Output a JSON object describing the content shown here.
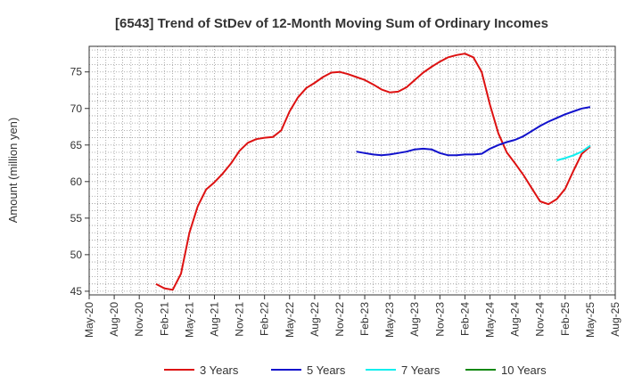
{
  "chart_data": {
    "type": "line",
    "title": "[6543]  Trend of StDev of 12-Month Moving Sum of Ordinary Incomes",
    "ylabel": "Amount (million yen)",
    "xlabel": "",
    "x_ticks": [
      "May-20",
      "Aug-20",
      "Nov-20",
      "Feb-21",
      "May-21",
      "Aug-21",
      "Nov-21",
      "Feb-22",
      "May-22",
      "Aug-22",
      "Nov-22",
      "Feb-23",
      "May-23",
      "Aug-23",
      "Nov-23",
      "Feb-24",
      "May-24",
      "Aug-24",
      "Nov-24",
      "Feb-25",
      "May-25",
      "Aug-25"
    ],
    "y_ticks": [
      45,
      50,
      55,
      60,
      65,
      70,
      75
    ],
    "ylim": [
      44.5,
      78.5
    ],
    "grid": true,
    "legend_position": "bottom",
    "series": [
      {
        "name": "3 Years",
        "color": "#dd1111",
        "x": [
          "Jan-21",
          "Feb-21",
          "Mar-21",
          "Apr-21",
          "May-21",
          "Jun-21",
          "Jul-21",
          "Aug-21",
          "Sep-21",
          "Oct-21",
          "Nov-21",
          "Dec-21",
          "Jan-22",
          "Feb-22",
          "Mar-22",
          "Apr-22",
          "May-22",
          "Jun-22",
          "Jul-22",
          "Aug-22",
          "Sep-22",
          "Oct-22",
          "Nov-22",
          "Dec-22",
          "Jan-23",
          "Feb-23",
          "Mar-23",
          "Apr-23",
          "May-23",
          "Jun-23",
          "Jul-23",
          "Aug-23",
          "Sep-23",
          "Oct-23",
          "Nov-23",
          "Dec-23",
          "Jan-24",
          "Feb-24",
          "Mar-24",
          "Apr-24",
          "May-24",
          "Jun-24",
          "Jul-24",
          "Aug-24",
          "Sep-24",
          "Oct-24",
          "Nov-24",
          "Dec-24",
          "Jan-25",
          "Feb-25",
          "Mar-25",
          "Apr-25",
          "May-25"
        ],
        "values": [
          46.0,
          45.4,
          45.2,
          47.4,
          53.0,
          56.6,
          58.9,
          59.9,
          61.1,
          62.5,
          64.2,
          65.3,
          65.8,
          66.0,
          66.1,
          67.0,
          69.6,
          71.5,
          72.8,
          73.5,
          74.3,
          74.9,
          75.0,
          74.7,
          74.3,
          73.9,
          73.3,
          72.6,
          72.2,
          72.3,
          72.9,
          73.9,
          74.9,
          75.7,
          76.4,
          77.0,
          77.3,
          77.5,
          77.0,
          75.0,
          70.5,
          66.6,
          64.0,
          62.5,
          60.9,
          59.1,
          57.3,
          56.9,
          57.6,
          59.0,
          61.5,
          63.8,
          64.8
        ]
      },
      {
        "name": "5 Years",
        "color": "#1111cc",
        "x": [
          "Jan-23",
          "Feb-23",
          "Mar-23",
          "Apr-23",
          "May-23",
          "Jun-23",
          "Jul-23",
          "Aug-23",
          "Sep-23",
          "Oct-23",
          "Nov-23",
          "Dec-23",
          "Jan-24",
          "Feb-24",
          "Mar-24",
          "Apr-24",
          "May-24",
          "Jun-24",
          "Jul-24",
          "Aug-24",
          "Sep-24",
          "Oct-24",
          "Nov-24",
          "Dec-24",
          "Jan-25",
          "Feb-25",
          "Mar-25",
          "Apr-25",
          "May-25"
        ],
        "values": [
          64.1,
          63.9,
          63.7,
          63.6,
          63.7,
          63.9,
          64.1,
          64.4,
          64.5,
          64.4,
          63.9,
          63.6,
          63.6,
          63.7,
          63.7,
          63.8,
          64.5,
          65.0,
          65.4,
          65.7,
          66.2,
          66.9,
          67.6,
          68.2,
          68.7,
          69.2,
          69.6,
          70.0,
          70.2
        ]
      },
      {
        "name": "7 Years",
        "color": "#11eeee",
        "x": [
          "Jan-25",
          "Feb-25",
          "Mar-25",
          "Apr-25",
          "May-25"
        ],
        "values": [
          62.9,
          63.2,
          63.6,
          64.1,
          64.9
        ]
      },
      {
        "name": "10 Years",
        "color": "#118811",
        "x": [],
        "values": []
      }
    ]
  }
}
